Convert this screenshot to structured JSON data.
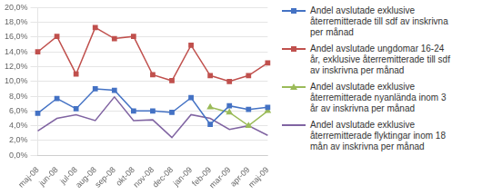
{
  "chart_data": {
    "type": "line",
    "categories": [
      "maj-08",
      "jun-08",
      "jul-08",
      "aug-08",
      "sep-08",
      "okt-08",
      "nov-08",
      "dec-08",
      "jan-09",
      "feb-09",
      "mar-09",
      "apr-09",
      "maj-09"
    ],
    "series": [
      {
        "name": "Andel avslutade exklusive\nåterremitterade till sdf av inskrivna\nper månad",
        "color": "#4472C4",
        "marker": "square",
        "values": [
          0.057,
          0.077,
          0.063,
          0.09,
          0.088,
          0.06,
          0.06,
          0.058,
          0.078,
          0.042,
          0.067,
          0.062,
          0.065
        ]
      },
      {
        "name": "Andel avslutade ungdomar 16-24\når, exklusive återremitterade till sdf\nav inskrivna per månad",
        "color": "#C0504D",
        "marker": "square",
        "values": [
          0.14,
          0.161,
          0.11,
          0.173,
          0.158,
          0.161,
          0.109,
          0.101,
          0.149,
          0.108,
          0.1,
          0.108,
          0.125
        ]
      },
      {
        "name": "Andel avslutade exklusive\nåterremitterade nyanlända inom 3\når av inskrivna per månad",
        "color": "#9BBB59",
        "marker": "triangle",
        "values": [
          null,
          null,
          null,
          null,
          null,
          null,
          null,
          null,
          null,
          0.065,
          0.058,
          0.04,
          0.06
        ]
      },
      {
        "name": "Andel avslutade exklusive\nåterremitterade flyktingar inom 18\nmån av inskrivna per månad",
        "color": "#8064A2",
        "marker": "none",
        "values": [
          0.033,
          0.05,
          0.055,
          0.047,
          0.079,
          0.047,
          0.048,
          0.024,
          0.055,
          0.05,
          0.035,
          0.04,
          0.027
        ]
      }
    ],
    "ylim": [
      0.0,
      0.2
    ],
    "yticks": [
      {
        "value": 0.0,
        "label": "0,0%"
      },
      {
        "value": 0.02,
        "label": "2,0%"
      },
      {
        "value": 0.04,
        "label": "4,0%"
      },
      {
        "value": 0.06,
        "label": "6,0%"
      },
      {
        "value": 0.08,
        "label": "8,0%"
      },
      {
        "value": 0.1,
        "label": "10,0%"
      },
      {
        "value": 0.12,
        "label": "12,0%"
      },
      {
        "value": 0.14,
        "label": "14,0%"
      },
      {
        "value": 0.16,
        "label": "16,0%"
      },
      {
        "value": 0.18,
        "label": "18,0%"
      },
      {
        "value": 0.2,
        "label": "20,0%"
      }
    ],
    "grid": "y",
    "legend": "right"
  }
}
